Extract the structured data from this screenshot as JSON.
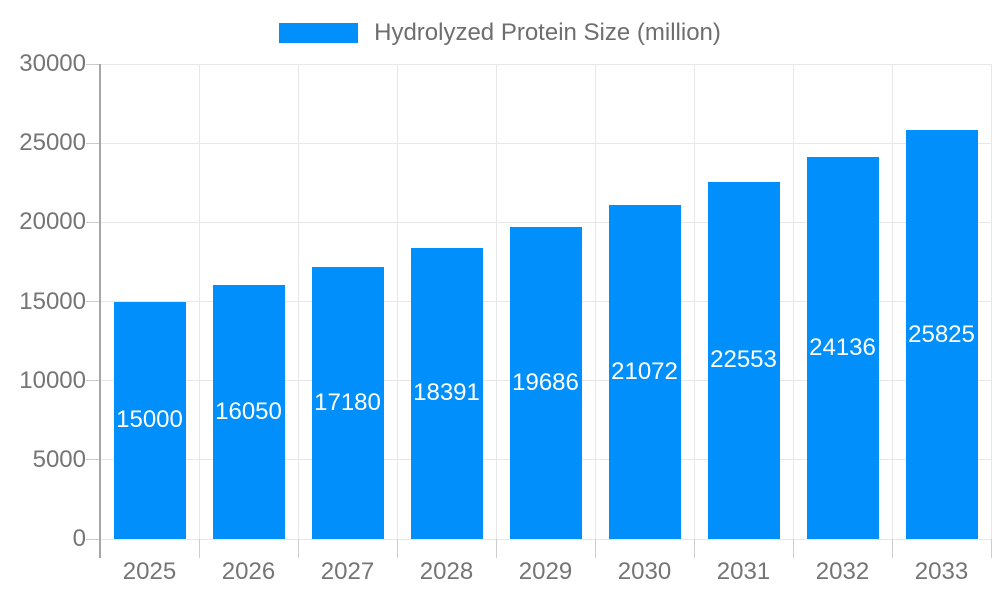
{
  "chart_data": {
    "type": "bar",
    "title": "",
    "xlabel": "",
    "ylabel": "",
    "legend": {
      "position": "top",
      "label": "Hydrolyzed Protein Size (million)"
    },
    "categories": [
      "2025",
      "2026",
      "2027",
      "2028",
      "2029",
      "2030",
      "2031",
      "2032",
      "2033"
    ],
    "series": [
      {
        "name": "Hydrolyzed Protein Size (million)",
        "values": [
          15000,
          16050,
          17180,
          18391,
          19686,
          21072,
          22553,
          24136,
          25825
        ]
      }
    ],
    "bar_value_labels": [
      "15000",
      "16050",
      "17180",
      "18391",
      "19686",
      "21072",
      "22553",
      "24136",
      "25825"
    ],
    "ylim": [
      0,
      30000
    ],
    "yticks": [
      0,
      5000,
      10000,
      15000,
      20000,
      25000,
      30000
    ],
    "grid": true,
    "colors": {
      "bar": "#008ffb",
      "bar_label": "#ffffff",
      "gridline": "#e7e7e7",
      "tick": "#cccccc",
      "axis_line": "#a6a6a6",
      "axis_text": "#757575",
      "legend_text": "#6e6e6e",
      "background": "#ffffff"
    }
  }
}
